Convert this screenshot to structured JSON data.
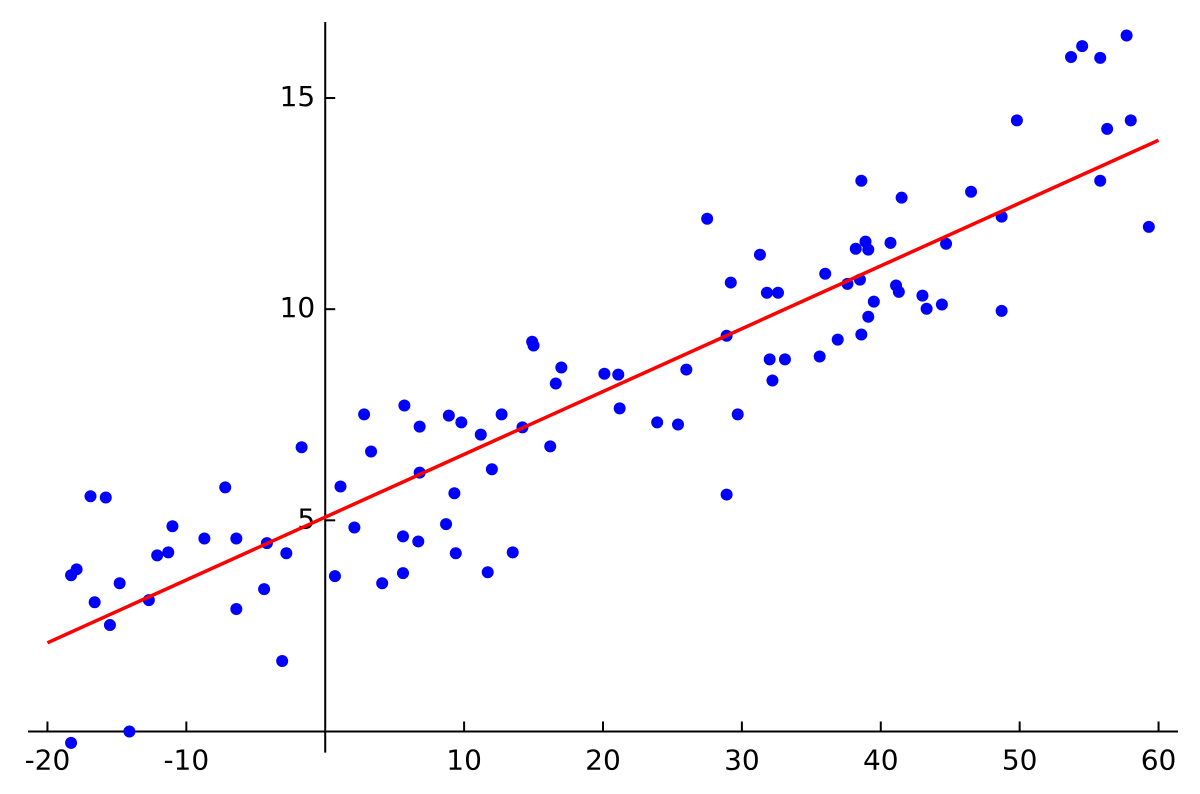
{
  "chart_data": {
    "type": "scatter",
    "xlim": [
      -21.4,
      61.4
    ],
    "ylim": [
      -0.5,
      16.8
    ],
    "xticks": [
      -20,
      -10,
      10,
      20,
      30,
      40,
      50,
      60
    ],
    "yticks": [
      5,
      10,
      15
    ],
    "series": [
      {
        "type": "scatter",
        "color": "#0000ff",
        "x": [
          -18.3,
          -18.3,
          -17.9,
          -16.9,
          -16.6,
          -15.8,
          -15.5,
          -14.8,
          -14.1,
          -12.7,
          -12.1,
          -11.3,
          -11.0,
          -8.7,
          -7.2,
          -6.4,
          -6.4,
          -4.4,
          -4.2,
          -3.1,
          -2.8,
          -1.7,
          0.7,
          1.1,
          2.1,
          2.8,
          3.3,
          4.1,
          5.6,
          5.6,
          5.7,
          6.7,
          6.8,
          6.8,
          8.7,
          8.9,
          9.3,
          9.4,
          9.8,
          11.2,
          11.7,
          12.0,
          12.7,
          13.5,
          14.2,
          14.9,
          15.0,
          16.2,
          16.6,
          17.0,
          20.1,
          21.1,
          21.2,
          23.9,
          25.4,
          26.0,
          27.5,
          28.9,
          28.9,
          29.2,
          29.7,
          31.3,
          31.8,
          32.0,
          32.2,
          32.6,
          33.1,
          35.6,
          36.0,
          36.9,
          37.6,
          38.2,
          38.5,
          38.6,
          38.6,
          38.9,
          39.1,
          39.1,
          39.5,
          40.7,
          41.1,
          41.3,
          41.5,
          43.0,
          43.3,
          44.4,
          44.7,
          46.5,
          48.7,
          48.7,
          49.8,
          53.7,
          54.5,
          55.8,
          55.8,
          56.3,
          57.7,
          58.0,
          59.3
        ],
        "values": [
          -0.27,
          3.7,
          3.84,
          5.57,
          3.06,
          5.54,
          2.52,
          3.51,
          0,
          3.11,
          4.17,
          4.24,
          4.86,
          4.57,
          5.78,
          4.57,
          2.9,
          3.37,
          4.46,
          1.67,
          4.22,
          6.73,
          3.68,
          5.8,
          4.83,
          7.51,
          6.63,
          3.51,
          4.62,
          3.75,
          7.72,
          4.5,
          7.22,
          6.13,
          4.91,
          7.48,
          5.64,
          4.22,
          7.32,
          7.03,
          3.77,
          6.21,
          7.51,
          4.24,
          7.2,
          9.23,
          9.14,
          6.75,
          8.24,
          8.62,
          8.47,
          8.45,
          7.65,
          7.32,
          7.27,
          8.57,
          12.14,
          5.61,
          9.37,
          10.63,
          7.51,
          11.29,
          10.39,
          8.81,
          8.31,
          10.39,
          8.81,
          8.88,
          10.84,
          9.28,
          10.6,
          11.43,
          10.7,
          13.04,
          9.4,
          11.6,
          9.82,
          11.41,
          10.18,
          11.57,
          10.56,
          10.41,
          12.64,
          10.32,
          10.01,
          10.11,
          11.55,
          12.78,
          12.19,
          9.96,
          14.47,
          15.97,
          16.23,
          15.95,
          13.04,
          14.27,
          16.48,
          14.47,
          11.95
        ]
      },
      {
        "type": "line",
        "color": "#ff0000",
        "x": [
          -20,
          60
        ],
        "values": [
          2.1,
          14.0
        ]
      }
    ]
  }
}
